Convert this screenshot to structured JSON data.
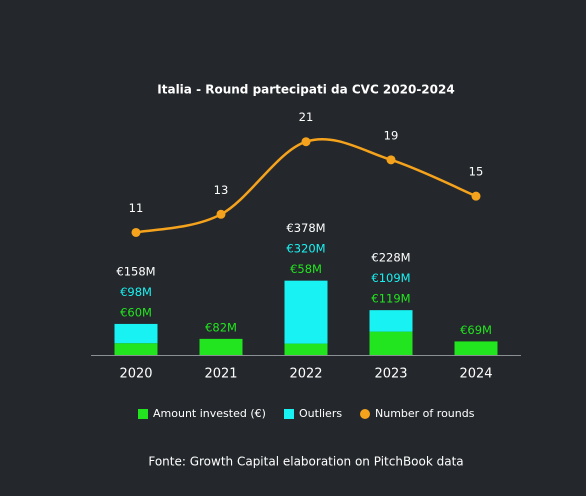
{
  "chart_data": {
    "type": "bar",
    "title": "Italia - Round partecipati da CVC 2020-2024",
    "source": "Fonte: Growth Capital elaboration on PitchBook data",
    "title_color": "#22e51f",
    "categories": [
      "2020",
      "2021",
      "2022",
      "2023",
      "2024"
    ],
    "series": [
      {
        "name": "Amount invested (€)",
        "type": "bar",
        "color": "#22e51f",
        "values": [
          60,
          82,
          58,
          119,
          69
        ],
        "value_labels": [
          "€60M",
          "€82M",
          "€58M",
          "€119M",
          "€69M"
        ]
      },
      {
        "name": "Outliers",
        "type": "bar",
        "color": "#19f2f2",
        "values": [
          98,
          null,
          320,
          109,
          null
        ],
        "value_labels": [
          "€98M",
          null,
          "€320M",
          "€109M",
          null
        ]
      },
      {
        "name": "Number of rounds",
        "type": "line",
        "axis": "y2",
        "color": "#f5a21c",
        "values": [
          11,
          13,
          21,
          19,
          15
        ]
      }
    ],
    "total_labels": [
      "€158M",
      null,
      "€378M",
      "€228M",
      null
    ],
    "ylim": [
      0,
      1500
    ],
    "y2lim": [
      -2.5,
      30
    ]
  }
}
